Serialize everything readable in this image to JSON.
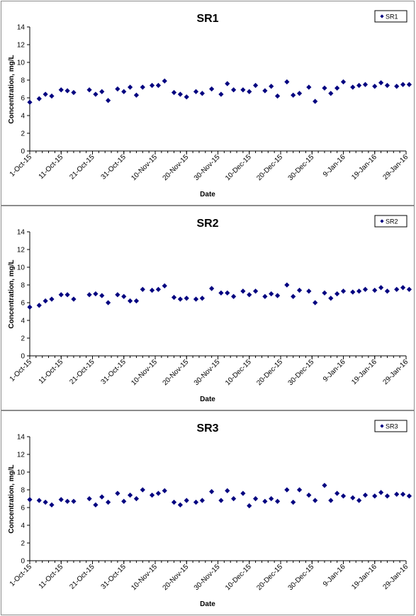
{
  "chart_data": [
    {
      "type": "scatter",
      "title": "SR1",
      "xlabel": "Date",
      "ylabel": "Concentration, mg/L",
      "ylim": [
        0,
        14
      ],
      "yticks": [
        "0",
        "2",
        "4",
        "6",
        "8",
        "10",
        "12",
        "14"
      ],
      "xlim": [
        "2015-10-01",
        "2016-01-29"
      ],
      "xticks": [
        {
          "date": "2015-10-01",
          "label": "1-Oct-15"
        },
        {
          "date": "2015-10-11",
          "label": "11-Oct-15"
        },
        {
          "date": "2015-10-21",
          "label": "21-Oct-15"
        },
        {
          "date": "2015-10-31",
          "label": "31-Oct-15"
        },
        {
          "date": "2015-11-10",
          "label": "10-Nov-15"
        },
        {
          "date": "2015-11-20",
          "label": "20-Nov-15"
        },
        {
          "date": "2015-11-30",
          "label": "30-Nov-15"
        },
        {
          "date": "2015-12-10",
          "label": "10-Dec-15"
        },
        {
          "date": "2015-12-20",
          "label": "20-Dec-15"
        },
        {
          "date": "2015-12-30",
          "label": "30-Dec-15"
        },
        {
          "date": "2016-01-09",
          "label": "9-Jan-16"
        },
        {
          "date": "2016-01-19",
          "label": "19-Jan-16"
        },
        {
          "date": "2016-01-29",
          "label": "29-Jan-16"
        }
      ],
      "legend_position": "top-right",
      "grid": false,
      "series": [
        {
          "name": "SR1",
          "color": "#000080",
          "marker": "diamond",
          "points": [
            {
              "x": "2015-10-01",
              "y": 5.5
            },
            {
              "x": "2015-10-04",
              "y": 5.9
            },
            {
              "x": "2015-10-06",
              "y": 6.4
            },
            {
              "x": "2015-10-08",
              "y": 6.2
            },
            {
              "x": "2015-10-11",
              "y": 6.9
            },
            {
              "x": "2015-10-13",
              "y": 6.8
            },
            {
              "x": "2015-10-15",
              "y": 6.6
            },
            {
              "x": "2015-10-20",
              "y": 6.9
            },
            {
              "x": "2015-10-22",
              "y": 6.4
            },
            {
              "x": "2015-10-24",
              "y": 6.7
            },
            {
              "x": "2015-10-26",
              "y": 5.7
            },
            {
              "x": "2015-10-29",
              "y": 7.0
            },
            {
              "x": "2015-10-31",
              "y": 6.7
            },
            {
              "x": "2015-11-02",
              "y": 7.2
            },
            {
              "x": "2015-11-04",
              "y": 6.3
            },
            {
              "x": "2015-11-06",
              "y": 7.2
            },
            {
              "x": "2015-11-09",
              "y": 7.4
            },
            {
              "x": "2015-11-11",
              "y": 7.4
            },
            {
              "x": "2015-11-13",
              "y": 7.9
            },
            {
              "x": "2015-11-16",
              "y": 6.6
            },
            {
              "x": "2015-11-18",
              "y": 6.4
            },
            {
              "x": "2015-11-20",
              "y": 6.1
            },
            {
              "x": "2015-11-23",
              "y": 6.7
            },
            {
              "x": "2015-11-25",
              "y": 6.5
            },
            {
              "x": "2015-11-28",
              "y": 7.0
            },
            {
              "x": "2015-12-01",
              "y": 6.4
            },
            {
              "x": "2015-12-03",
              "y": 7.6
            },
            {
              "x": "2015-12-05",
              "y": 6.9
            },
            {
              "x": "2015-12-08",
              "y": 6.9
            },
            {
              "x": "2015-12-10",
              "y": 6.7
            },
            {
              "x": "2015-12-12",
              "y": 7.4
            },
            {
              "x": "2015-12-15",
              "y": 6.8
            },
            {
              "x": "2015-12-17",
              "y": 7.3
            },
            {
              "x": "2015-12-19",
              "y": 6.2
            },
            {
              "x": "2015-12-22",
              "y": 7.8
            },
            {
              "x": "2015-12-24",
              "y": 6.3
            },
            {
              "x": "2015-12-26",
              "y": 6.5
            },
            {
              "x": "2015-12-29",
              "y": 7.2
            },
            {
              "x": "2015-12-31",
              "y": 5.6
            },
            {
              "x": "2016-01-03",
              "y": 7.1
            },
            {
              "x": "2016-01-05",
              "y": 6.5
            },
            {
              "x": "2016-01-07",
              "y": 7.1
            },
            {
              "x": "2016-01-09",
              "y": 7.8
            },
            {
              "x": "2016-01-12",
              "y": 7.2
            },
            {
              "x": "2016-01-14",
              "y": 7.4
            },
            {
              "x": "2016-01-16",
              "y": 7.5
            },
            {
              "x": "2016-01-19",
              "y": 7.3
            },
            {
              "x": "2016-01-21",
              "y": 7.7
            },
            {
              "x": "2016-01-23",
              "y": 7.4
            },
            {
              "x": "2016-01-26",
              "y": 7.3
            },
            {
              "x": "2016-01-28",
              "y": 7.5
            },
            {
              "x": "2016-01-30",
              "y": 7.5
            }
          ]
        }
      ]
    },
    {
      "type": "scatter",
      "title": "SR2",
      "xlabel": "Date",
      "ylabel": "Concentration, mg/L",
      "ylim": [
        0,
        14
      ],
      "yticks": [
        "0",
        "2",
        "4",
        "6",
        "8",
        "10",
        "12",
        "14"
      ],
      "xlim": [
        "2015-10-01",
        "2016-01-29"
      ],
      "xticks": [
        {
          "date": "2015-10-01",
          "label": "1-Oct-15"
        },
        {
          "date": "2015-10-11",
          "label": "11-Oct-15"
        },
        {
          "date": "2015-10-21",
          "label": "21-Oct-15"
        },
        {
          "date": "2015-10-31",
          "label": "31-Oct-15"
        },
        {
          "date": "2015-11-10",
          "label": "10-Nov-15"
        },
        {
          "date": "2015-11-20",
          "label": "20-Nov-15"
        },
        {
          "date": "2015-11-30",
          "label": "30-Nov-15"
        },
        {
          "date": "2015-12-10",
          "label": "10-Dec-15"
        },
        {
          "date": "2015-12-20",
          "label": "20-Dec-15"
        },
        {
          "date": "2015-12-30",
          "label": "30-Dec-15"
        },
        {
          "date": "2016-01-09",
          "label": "9-Jan-16"
        },
        {
          "date": "2016-01-19",
          "label": "19-Jan-16"
        },
        {
          "date": "2016-01-29",
          "label": "29-Jan-16"
        }
      ],
      "legend_position": "top-right",
      "grid": false,
      "series": [
        {
          "name": "SR2",
          "color": "#000080",
          "marker": "diamond",
          "points": [
            {
              "x": "2015-10-01",
              "y": 5.5
            },
            {
              "x": "2015-10-04",
              "y": 5.7
            },
            {
              "x": "2015-10-06",
              "y": 6.2
            },
            {
              "x": "2015-10-08",
              "y": 6.4
            },
            {
              "x": "2015-10-11",
              "y": 6.9
            },
            {
              "x": "2015-10-13",
              "y": 6.9
            },
            {
              "x": "2015-10-15",
              "y": 6.4
            },
            {
              "x": "2015-10-20",
              "y": 6.9
            },
            {
              "x": "2015-10-22",
              "y": 7.0
            },
            {
              "x": "2015-10-24",
              "y": 6.8
            },
            {
              "x": "2015-10-26",
              "y": 6.0
            },
            {
              "x": "2015-10-29",
              "y": 6.9
            },
            {
              "x": "2015-10-31",
              "y": 6.7
            },
            {
              "x": "2015-11-02",
              "y": 6.2
            },
            {
              "x": "2015-11-04",
              "y": 6.2
            },
            {
              "x": "2015-11-06",
              "y": 7.5
            },
            {
              "x": "2015-11-09",
              "y": 7.4
            },
            {
              "x": "2015-11-11",
              "y": 7.5
            },
            {
              "x": "2015-11-13",
              "y": 7.9
            },
            {
              "x": "2015-11-16",
              "y": 6.6
            },
            {
              "x": "2015-11-18",
              "y": 6.4
            },
            {
              "x": "2015-11-20",
              "y": 6.5
            },
            {
              "x": "2015-11-23",
              "y": 6.4
            },
            {
              "x": "2015-11-25",
              "y": 6.5
            },
            {
              "x": "2015-11-28",
              "y": 7.6
            },
            {
              "x": "2015-12-01",
              "y": 7.1
            },
            {
              "x": "2015-12-03",
              "y": 7.1
            },
            {
              "x": "2015-12-05",
              "y": 6.7
            },
            {
              "x": "2015-12-08",
              "y": 7.3
            },
            {
              "x": "2015-12-10",
              "y": 6.9
            },
            {
              "x": "2015-12-12",
              "y": 7.3
            },
            {
              "x": "2015-12-15",
              "y": 6.7
            },
            {
              "x": "2015-12-17",
              "y": 7.0
            },
            {
              "x": "2015-12-19",
              "y": 6.8
            },
            {
              "x": "2015-12-22",
              "y": 8.0
            },
            {
              "x": "2015-12-24",
              "y": 6.7
            },
            {
              "x": "2015-12-26",
              "y": 7.4
            },
            {
              "x": "2015-12-29",
              "y": 7.3
            },
            {
              "x": "2015-12-31",
              "y": 6.0
            },
            {
              "x": "2016-01-03",
              "y": 7.1
            },
            {
              "x": "2016-01-05",
              "y": 6.5
            },
            {
              "x": "2016-01-07",
              "y": 7.0
            },
            {
              "x": "2016-01-09",
              "y": 7.3
            },
            {
              "x": "2016-01-12",
              "y": 7.2
            },
            {
              "x": "2016-01-14",
              "y": 7.3
            },
            {
              "x": "2016-01-16",
              "y": 7.5
            },
            {
              "x": "2016-01-19",
              "y": 7.4
            },
            {
              "x": "2016-01-21",
              "y": 7.7
            },
            {
              "x": "2016-01-23",
              "y": 7.3
            },
            {
              "x": "2016-01-26",
              "y": 7.5
            },
            {
              "x": "2016-01-28",
              "y": 7.7
            },
            {
              "x": "2016-01-30",
              "y": 7.5
            }
          ]
        }
      ]
    },
    {
      "type": "scatter",
      "title": "SR3",
      "xlabel": "Date",
      "ylabel": "Concentration, mg/L",
      "ylim": [
        0,
        14
      ],
      "yticks": [
        "0",
        "2",
        "4",
        "6",
        "8",
        "10",
        "12",
        "14"
      ],
      "xlim": [
        "2015-10-01",
        "2016-01-29"
      ],
      "xticks": [
        {
          "date": "2015-10-01",
          "label": "1-Oct-15"
        },
        {
          "date": "2015-10-11",
          "label": "11-Oct-15"
        },
        {
          "date": "2015-10-21",
          "label": "21-Oct-15"
        },
        {
          "date": "2015-10-31",
          "label": "31-Oct-15"
        },
        {
          "date": "2015-11-10",
          "label": "10-Nov-15"
        },
        {
          "date": "2015-11-20",
          "label": "20-Nov-15"
        },
        {
          "date": "2015-11-30",
          "label": "30-Nov-15"
        },
        {
          "date": "2015-12-10",
          "label": "10-Dec-15"
        },
        {
          "date": "2015-12-20",
          "label": "20-Dec-15"
        },
        {
          "date": "2015-12-30",
          "label": "30-Dec-15"
        },
        {
          "date": "2016-01-09",
          "label": "9-Jan-16"
        },
        {
          "date": "2016-01-19",
          "label": "19-Jan-16"
        },
        {
          "date": "2016-01-29",
          "label": "29-Jan-16"
        }
      ],
      "legend_position": "top-right",
      "grid": false,
      "series": [
        {
          "name": "SR3",
          "color": "#000080",
          "marker": "diamond",
          "points": [
            {
              "x": "2015-10-01",
              "y": 6.9
            },
            {
              "x": "2015-10-04",
              "y": 6.8
            },
            {
              "x": "2015-10-06",
              "y": 6.6
            },
            {
              "x": "2015-10-08",
              "y": 6.3
            },
            {
              "x": "2015-10-11",
              "y": 6.9
            },
            {
              "x": "2015-10-13",
              "y": 6.7
            },
            {
              "x": "2015-10-15",
              "y": 6.7
            },
            {
              "x": "2015-10-20",
              "y": 7.0
            },
            {
              "x": "2015-10-22",
              "y": 6.3
            },
            {
              "x": "2015-10-24",
              "y": 7.2
            },
            {
              "x": "2015-10-26",
              "y": 6.6
            },
            {
              "x": "2015-10-29",
              "y": 7.6
            },
            {
              "x": "2015-10-31",
              "y": 6.7
            },
            {
              "x": "2015-11-02",
              "y": 7.4
            },
            {
              "x": "2015-11-04",
              "y": 7.0
            },
            {
              "x": "2015-11-06",
              "y": 8.0
            },
            {
              "x": "2015-11-09",
              "y": 7.4
            },
            {
              "x": "2015-11-11",
              "y": 7.6
            },
            {
              "x": "2015-11-13",
              "y": 7.9
            },
            {
              "x": "2015-11-16",
              "y": 6.6
            },
            {
              "x": "2015-11-18",
              "y": 6.3
            },
            {
              "x": "2015-11-20",
              "y": 6.8
            },
            {
              "x": "2015-11-23",
              "y": 6.6
            },
            {
              "x": "2015-11-25",
              "y": 6.8
            },
            {
              "x": "2015-11-28",
              "y": 7.8
            },
            {
              "x": "2015-12-01",
              "y": 6.8
            },
            {
              "x": "2015-12-03",
              "y": 7.9
            },
            {
              "x": "2015-12-05",
              "y": 7.0
            },
            {
              "x": "2015-12-08",
              "y": 7.6
            },
            {
              "x": "2015-12-10",
              "y": 6.2
            },
            {
              "x": "2015-12-12",
              "y": 7.0
            },
            {
              "x": "2015-12-15",
              "y": 6.7
            },
            {
              "x": "2015-12-17",
              "y": 7.0
            },
            {
              "x": "2015-12-19",
              "y": 6.7
            },
            {
              "x": "2015-12-22",
              "y": 8.0
            },
            {
              "x": "2015-12-24",
              "y": 6.6
            },
            {
              "x": "2015-12-26",
              "y": 8.0
            },
            {
              "x": "2015-12-29",
              "y": 7.4
            },
            {
              "x": "2015-12-31",
              "y": 6.8
            },
            {
              "x": "2016-01-03",
              "y": 8.5
            },
            {
              "x": "2016-01-05",
              "y": 6.8
            },
            {
              "x": "2016-01-07",
              "y": 7.6
            },
            {
              "x": "2016-01-09",
              "y": 7.3
            },
            {
              "x": "2016-01-12",
              "y": 7.1
            },
            {
              "x": "2016-01-14",
              "y": 6.8
            },
            {
              "x": "2016-01-16",
              "y": 7.4
            },
            {
              "x": "2016-01-19",
              "y": 7.3
            },
            {
              "x": "2016-01-21",
              "y": 7.7
            },
            {
              "x": "2016-01-23",
              "y": 7.3
            },
            {
              "x": "2016-01-26",
              "y": 7.5
            },
            {
              "x": "2016-01-28",
              "y": 7.5
            },
            {
              "x": "2016-01-30",
              "y": 7.3
            }
          ]
        }
      ]
    }
  ]
}
